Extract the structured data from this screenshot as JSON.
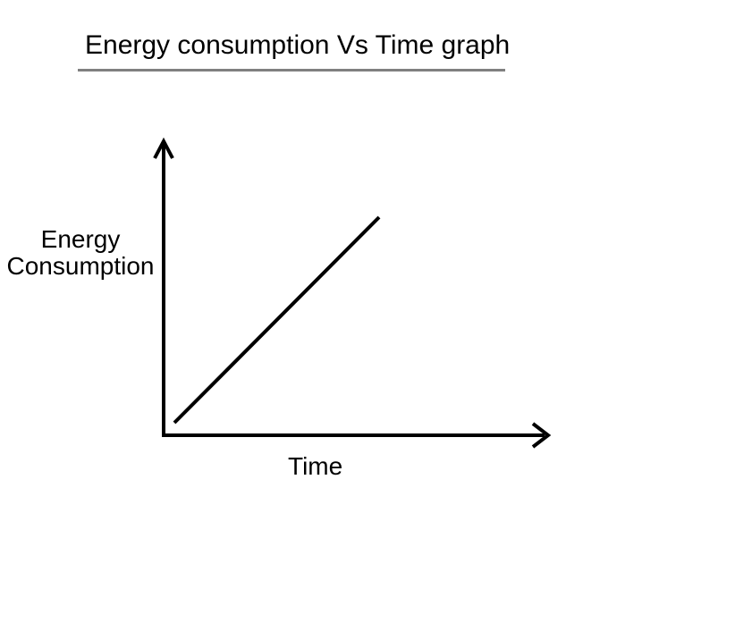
{
  "chart": {
    "title": "Energy consumption Vs Time graph",
    "y_axis_label": [
      "Energy",
      "Consumption"
    ],
    "x_axis_label": "Time"
  },
  "chart_data": {
    "type": "line",
    "title": "Energy consumption Vs Time graph",
    "xlabel": "Time",
    "ylabel": "Energy Consumption",
    "x": [
      0,
      1
    ],
    "series": [
      {
        "name": "Energy consumption",
        "values": [
          0,
          1
        ]
      }
    ],
    "x_ticks": [],
    "y_ticks": [],
    "xlim": [
      0,
      1
    ],
    "ylim": [
      0,
      1
    ],
    "grid": false,
    "legend": "none",
    "line_color": "#000000",
    "axis_color": "#000000",
    "description": "Straight diagonal line starting just above the origin and rising at about 45 degrees, indicating energy consumption increases linearly with time"
  },
  "decorations": {
    "title_underline_color": "#808080",
    "text_color": "#000000",
    "background_color": "#ffffff"
  }
}
